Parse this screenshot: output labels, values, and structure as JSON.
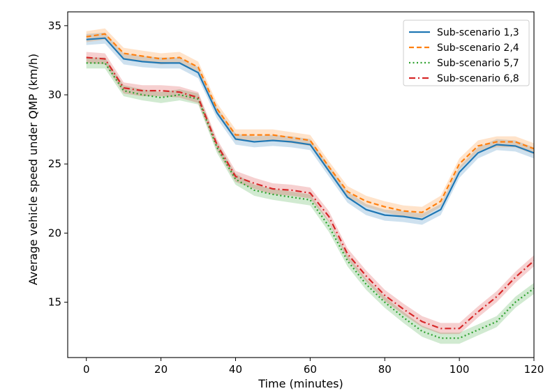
{
  "chart_data": {
    "type": "line",
    "title": "",
    "xlabel": "Time (minutes)",
    "ylabel": "Average vehicle speed under QMP (km/h)",
    "xlim": [
      -5,
      120
    ],
    "ylim": [
      11,
      36
    ],
    "xticks": [
      0,
      20,
      40,
      60,
      80,
      100,
      120
    ],
    "yticks": [
      15,
      20,
      25,
      30,
      35
    ],
    "legend_position": "top-right",
    "grid": false,
    "x": [
      0,
      5,
      10,
      15,
      20,
      25,
      30,
      35,
      40,
      45,
      50,
      55,
      60,
      65,
      70,
      75,
      80,
      85,
      90,
      95,
      100,
      105,
      110,
      115,
      120
    ],
    "series": [
      {
        "name": "Sub-scenario 1,3",
        "color": "#1f77b4",
        "dash": "solid",
        "band": 0.4,
        "values": [
          34.0,
          34.1,
          32.6,
          32.4,
          32.3,
          32.3,
          31.6,
          28.7,
          26.8,
          26.6,
          26.7,
          26.6,
          26.4,
          24.5,
          22.6,
          21.7,
          21.3,
          21.2,
          21.0,
          21.7,
          24.4,
          25.8,
          26.4,
          26.3,
          25.8
        ]
      },
      {
        "name": "Sub-scenario 2,4",
        "color": "#ff7f0e",
        "dash": "dashed",
        "band": 0.4,
        "values": [
          34.2,
          34.4,
          33.0,
          32.8,
          32.6,
          32.7,
          32.0,
          29.0,
          27.1,
          27.1,
          27.1,
          26.9,
          26.7,
          24.8,
          23.0,
          22.3,
          21.9,
          21.6,
          21.5,
          22.3,
          25.0,
          26.3,
          26.6,
          26.6,
          26.1
        ]
      },
      {
        "name": "Sub-scenario 5,7",
        "color": "#2ca02c",
        "dash": "dotted",
        "band": 0.4,
        "values": [
          32.3,
          32.3,
          30.3,
          30.0,
          29.8,
          30.0,
          29.7,
          26.2,
          23.9,
          23.1,
          22.8,
          22.6,
          22.4,
          20.5,
          18.0,
          16.3,
          15.0,
          13.9,
          12.9,
          12.4,
          12.4,
          13.0,
          13.6,
          15.0,
          16.0
        ]
      },
      {
        "name": "Sub-scenario 6,8",
        "color": "#d62728",
        "dash": "dashdot",
        "band": 0.4,
        "values": [
          32.7,
          32.6,
          30.5,
          30.3,
          30.3,
          30.2,
          29.8,
          26.4,
          24.1,
          23.6,
          23.2,
          23.1,
          22.9,
          21.2,
          18.5,
          16.9,
          15.5,
          14.5,
          13.6,
          13.1,
          13.1,
          14.3,
          15.4,
          16.8,
          18.0
        ]
      }
    ]
  }
}
